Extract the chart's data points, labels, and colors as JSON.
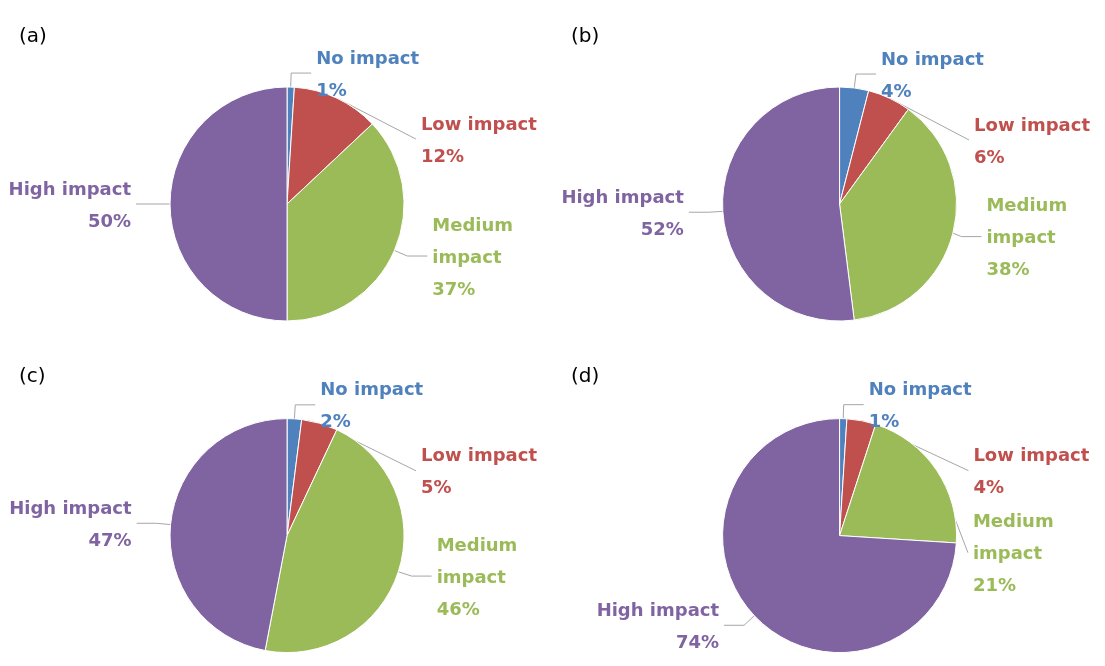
{
  "chart_data": [
    {
      "type": "pie",
      "title": "(a)",
      "categories": [
        "No impact",
        "Low impact",
        "Medium impact",
        "High impact"
      ],
      "values": [
        1,
        12,
        37,
        50
      ],
      "colors": [
        "#4f81bd",
        "#c0504d",
        "#9bbb59",
        "#8064a2"
      ],
      "value_labels": [
        "1%",
        "12%",
        "37%",
        "50%"
      ]
    },
    {
      "type": "pie",
      "title": "(b)",
      "categories": [
        "No impact",
        "Low impact",
        "Medium impact",
        "High impact"
      ],
      "values": [
        4,
        6,
        38,
        52
      ],
      "colors": [
        "#4f81bd",
        "#c0504d",
        "#9bbb59",
        "#8064a2"
      ],
      "value_labels": [
        "4%",
        "6%",
        "38%",
        "52%"
      ]
    },
    {
      "type": "pie",
      "title": "(c)",
      "categories": [
        "No impact",
        "Low impact",
        "Medium impact",
        "High impact"
      ],
      "values": [
        2,
        5,
        46,
        47
      ],
      "colors": [
        "#4f81bd",
        "#c0504d",
        "#9bbb59",
        "#8064a2"
      ],
      "value_labels": [
        "2%",
        "5%",
        "46%",
        "47%"
      ]
    },
    {
      "type": "pie",
      "title": "(d)",
      "categories": [
        "No impact",
        "Low impact",
        "Medium impact",
        "High impact"
      ],
      "values": [
        1,
        4,
        21,
        74
      ],
      "colors": [
        "#4f81bd",
        "#c0504d",
        "#9bbb59",
        "#8064a2"
      ],
      "value_labels": [
        "1%",
        "4%",
        "21%",
        "74%"
      ]
    }
  ]
}
